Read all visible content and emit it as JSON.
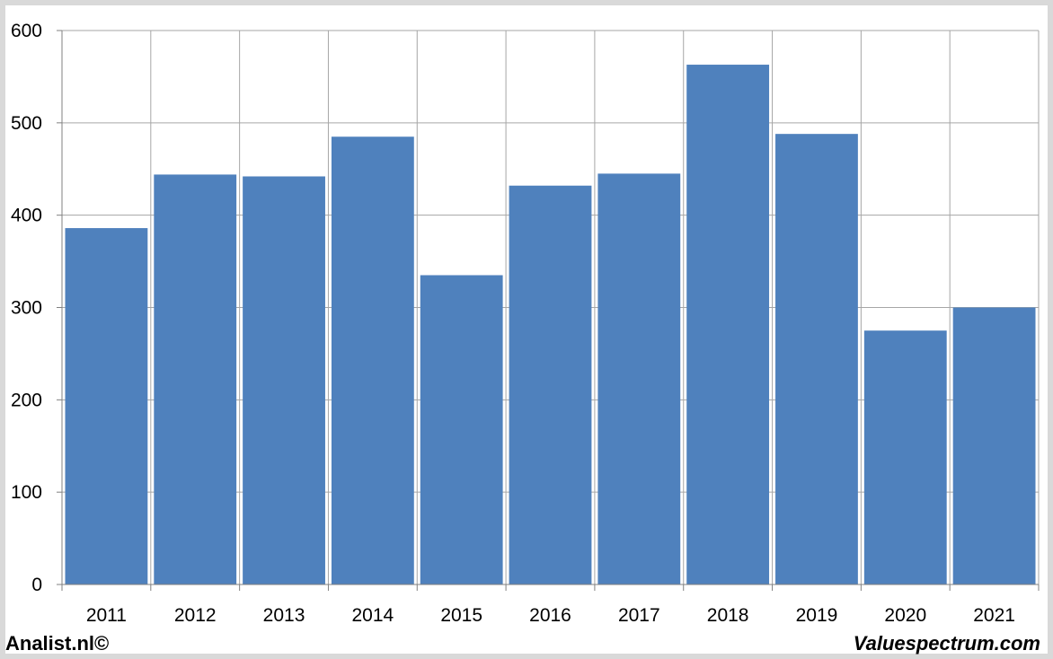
{
  "chart_data": {
    "type": "bar",
    "categories": [
      "2011",
      "2012",
      "2013",
      "2014",
      "2015",
      "2016",
      "2017",
      "2018",
      "2019",
      "2020",
      "2021"
    ],
    "values": [
      386,
      444,
      442,
      485,
      335,
      432,
      445,
      563,
      488,
      275,
      300
    ],
    "title": "",
    "xlabel": "",
    "ylabel": "",
    "ylim": [
      0,
      600
    ],
    "yticks": [
      "0",
      "100",
      "200",
      "300",
      "400",
      "500",
      "600"
    ],
    "grid": true,
    "bar_color": "#4f81bd",
    "grid_color": "#a6a6a6"
  },
  "footer": {
    "left": "Analist.nl©",
    "right": "Valuespectrum.com"
  }
}
